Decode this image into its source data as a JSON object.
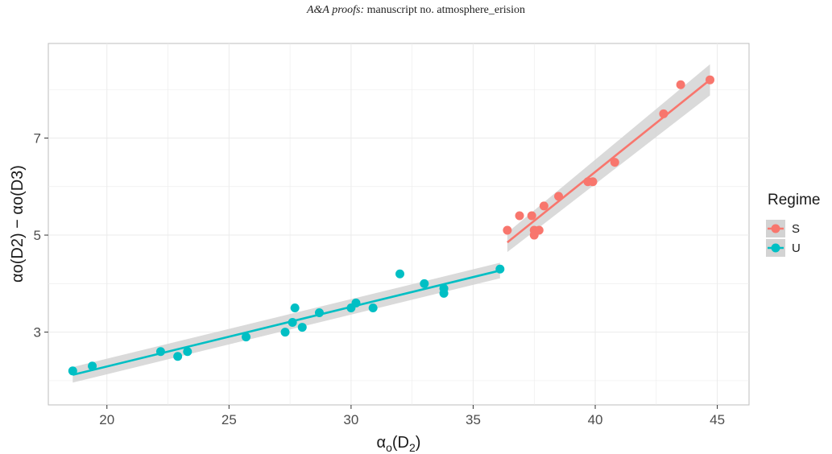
{
  "header": {
    "italic": "A&A proofs:",
    "rest": " manuscript no. atmosphere_erision"
  },
  "chart_data": {
    "type": "scatter",
    "xlabel_base": "α",
    "xlabel_sub": "o",
    "xlabel_arg": "(D",
    "xlabel_argsub": "2",
    "xlabel_close": ")",
    "ylabel": "αo(D2) − αo(D3)",
    "xlim": [
      17.6,
      46.3
    ],
    "ylim": [
      1.5,
      8.95
    ],
    "x_ticks": [
      20,
      25,
      30,
      35,
      40,
      45
    ],
    "y_ticks": [
      3,
      5,
      7
    ],
    "grid": true,
    "legend_title": "Regime",
    "legend_position": "right",
    "colors": {
      "S": "#F8766D",
      "U": "#00BFC4",
      "ribbon": "#d3d3d3"
    },
    "series": [
      {
        "name": "S",
        "points": [
          [
            36.4,
            5.1
          ],
          [
            36.9,
            5.4
          ],
          [
            37.4,
            5.4
          ],
          [
            37.5,
            5.0
          ],
          [
            37.5,
            5.1
          ],
          [
            37.7,
            5.1
          ],
          [
            37.9,
            5.6
          ],
          [
            38.5,
            5.8
          ],
          [
            39.7,
            6.1
          ],
          [
            39.9,
            6.1
          ],
          [
            40.8,
            6.5
          ],
          [
            42.8,
            7.5
          ],
          [
            43.5,
            8.1
          ],
          [
            44.7,
            8.2
          ]
        ],
        "fit": {
          "x0": 36.4,
          "x1": 44.7,
          "y0": 4.85,
          "y1": 8.2,
          "se0": 0.2,
          "se1": 0.32
        }
      },
      {
        "name": "U",
        "points": [
          [
            18.6,
            2.2
          ],
          [
            19.4,
            2.3
          ],
          [
            22.2,
            2.6
          ],
          [
            22.9,
            2.5
          ],
          [
            23.3,
            2.6
          ],
          [
            25.7,
            2.9
          ],
          [
            27.3,
            3.0
          ],
          [
            27.6,
            3.2
          ],
          [
            27.7,
            3.5
          ],
          [
            28.0,
            3.1
          ],
          [
            28.7,
            3.4
          ],
          [
            30.0,
            3.5
          ],
          [
            30.2,
            3.6
          ],
          [
            30.9,
            3.5
          ],
          [
            32.0,
            4.2
          ],
          [
            33.0,
            4.0
          ],
          [
            33.8,
            3.8
          ],
          [
            33.8,
            3.9
          ],
          [
            36.1,
            4.3
          ]
        ],
        "fit": {
          "x0": 18.6,
          "x1": 36.1,
          "y0": 2.12,
          "y1": 4.27,
          "se0": 0.16,
          "se1": 0.16
        }
      }
    ]
  }
}
